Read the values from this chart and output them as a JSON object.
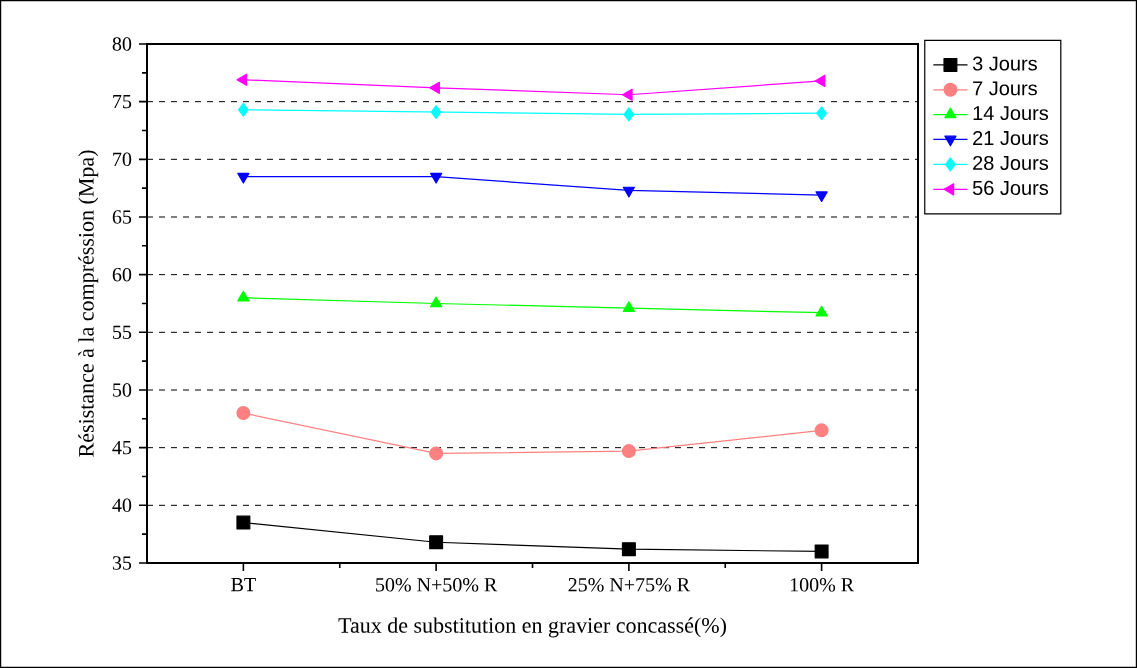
{
  "chart_data": {
    "type": "line",
    "xlabel": "Taux de substitution en gravier concassé(%)",
    "ylabel": "Résistance à la compréssion (Mpa)",
    "categories": [
      "BT",
      "50% N+50% R",
      "25% N+75% R",
      "100% R"
    ],
    "ylim": [
      35,
      80
    ],
    "yticks": [
      35,
      40,
      45,
      50,
      55,
      60,
      65,
      70,
      75,
      80
    ],
    "grid": "y",
    "legend": "top right",
    "series": [
      {
        "name": "3 Jours",
        "color": "#000000",
        "marker": "square",
        "values": [
          38.5,
          36.8,
          36.2,
          36.0
        ]
      },
      {
        "name": "7 Jours",
        "color": "#ff8080",
        "marker": "circle",
        "values": [
          48.0,
          44.5,
          44.7,
          46.5
        ]
      },
      {
        "name": "14 Jours",
        "color": "#00ff00",
        "marker": "triangle",
        "values": [
          58.0,
          57.5,
          57.1,
          56.7
        ]
      },
      {
        "name": "21 Jours",
        "color": "#0000ff",
        "marker": "triangle-down",
        "values": [
          68.5,
          68.5,
          67.3,
          66.9
        ]
      },
      {
        "name": "28 Jours",
        "color": "#00ffff",
        "marker": "diamond",
        "values": [
          74.3,
          74.1,
          73.9,
          74.0
        ]
      },
      {
        "name": "56 Jours",
        "color": "#ff00ff",
        "marker": "triangle-left",
        "values": [
          76.9,
          76.2,
          75.6,
          76.8
        ]
      }
    ]
  }
}
